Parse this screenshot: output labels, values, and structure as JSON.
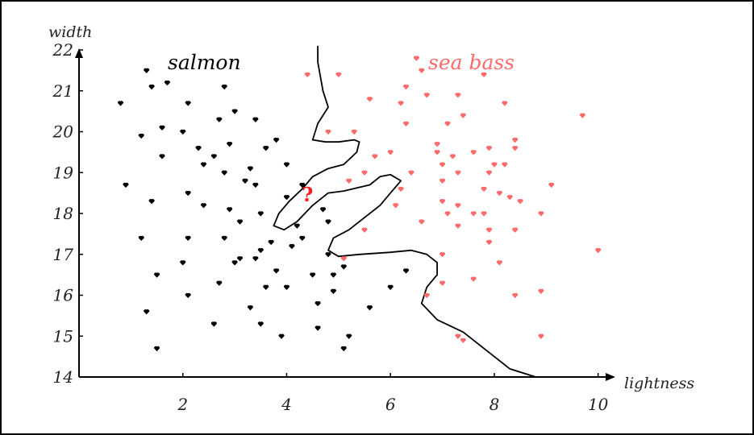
{
  "chart_data": {
    "type": "scatter",
    "xlabel": "lightness",
    "ylabel": "width",
    "xlim": [
      0,
      10.3
    ],
    "ylim": [
      14,
      22
    ],
    "xticks": [
      2,
      4,
      6,
      8,
      10
    ],
    "yticks": [
      14,
      15,
      16,
      17,
      18,
      19,
      20,
      21,
      22
    ],
    "grid": false,
    "colors": {
      "salmon": "#000000",
      "sea_bass": "#ff6b6b",
      "question": "#ff1a1a"
    },
    "class_labels": {
      "salmon": "salmon",
      "sea_bass": "sea bass"
    },
    "query": {
      "label": "?",
      "x": 4.4,
      "y": 18.3
    },
    "series": [
      {
        "name": "salmon",
        "points": [
          [
            1.3,
            21.5
          ],
          [
            1.4,
            21.1
          ],
          [
            1.7,
            21.2
          ],
          [
            2.8,
            21.1
          ],
          [
            0.8,
            20.7
          ],
          [
            2.1,
            20.7
          ],
          [
            3.0,
            20.5
          ],
          [
            2.7,
            20.3
          ],
          [
            3.4,
            20.3
          ],
          [
            1.6,
            20.1
          ],
          [
            2.0,
            20.0
          ],
          [
            1.2,
            19.9
          ],
          [
            3.8,
            19.8
          ],
          [
            2.3,
            19.6
          ],
          [
            2.9,
            19.7
          ],
          [
            3.6,
            19.6
          ],
          [
            1.6,
            19.4
          ],
          [
            2.6,
            19.4
          ],
          [
            4.0,
            19.2
          ],
          [
            2.4,
            19.2
          ],
          [
            3.3,
            19.1
          ],
          [
            2.8,
            19.0
          ],
          [
            3.4,
            18.7
          ],
          [
            3.2,
            18.8
          ],
          [
            4.3,
            18.7
          ],
          [
            0.9,
            18.7
          ],
          [
            2.1,
            18.5
          ],
          [
            4.0,
            18.4
          ],
          [
            1.4,
            18.3
          ],
          [
            2.4,
            18.2
          ],
          [
            2.9,
            18.1
          ],
          [
            3.5,
            18.0
          ],
          [
            4.7,
            18.1
          ],
          [
            3.1,
            17.8
          ],
          [
            4.2,
            17.7
          ],
          [
            4.8,
            17.8
          ],
          [
            2.1,
            17.4
          ],
          [
            2.8,
            17.4
          ],
          [
            3.7,
            17.3
          ],
          [
            4.3,
            17.4
          ],
          [
            1.2,
            17.4
          ],
          [
            4.1,
            17.2
          ],
          [
            3.5,
            17.1
          ],
          [
            3.1,
            16.9
          ],
          [
            3.4,
            16.9
          ],
          [
            4.8,
            17.0
          ],
          [
            2.0,
            16.8
          ],
          [
            3.0,
            16.8
          ],
          [
            5.1,
            16.7
          ],
          [
            3.8,
            16.6
          ],
          [
            4.5,
            16.5
          ],
          [
            4.9,
            16.5
          ],
          [
            1.5,
            16.5
          ],
          [
            2.7,
            16.3
          ],
          [
            3.6,
            16.2
          ],
          [
            4.0,
            16.2
          ],
          [
            6.0,
            16.2
          ],
          [
            4.9,
            16.1
          ],
          [
            6.3,
            16.6
          ],
          [
            2.1,
            16.0
          ],
          [
            4.6,
            15.8
          ],
          [
            3.3,
            15.7
          ],
          [
            5.6,
            15.7
          ],
          [
            1.3,
            15.6
          ],
          [
            3.5,
            15.3
          ],
          [
            2.6,
            15.3
          ],
          [
            3.9,
            15.0
          ],
          [
            4.6,
            15.2
          ],
          [
            5.2,
            15.0
          ],
          [
            1.5,
            14.7
          ],
          [
            5.1,
            14.7
          ]
        ]
      },
      {
        "name": "sea bass",
        "points": [
          [
            6.5,
            21.8
          ],
          [
            6.6,
            21.5
          ],
          [
            4.4,
            21.4
          ],
          [
            5.0,
            21.4
          ],
          [
            7.8,
            21.4
          ],
          [
            6.3,
            21.1
          ],
          [
            5.6,
            20.8
          ],
          [
            7.3,
            20.9
          ],
          [
            6.7,
            20.9
          ],
          [
            6.2,
            20.7
          ],
          [
            8.2,
            20.7
          ],
          [
            7.4,
            20.4
          ],
          [
            9.7,
            20.4
          ],
          [
            6.3,
            20.2
          ],
          [
            7.1,
            20.2
          ],
          [
            4.8,
            20.0
          ],
          [
            5.3,
            20.0
          ],
          [
            8.4,
            19.8
          ],
          [
            6.9,
            19.7
          ],
          [
            7.6,
            19.5
          ],
          [
            7.9,
            19.6
          ],
          [
            8.4,
            19.6
          ],
          [
            7.2,
            19.4
          ],
          [
            6.9,
            19.5
          ],
          [
            5.7,
            19.4
          ],
          [
            6.0,
            19.5
          ],
          [
            8.2,
            19.2
          ],
          [
            8.0,
            19.2
          ],
          [
            6.4,
            19.0
          ],
          [
            7.0,
            19.2
          ],
          [
            7.3,
            19.0
          ],
          [
            7.9,
            19.0
          ],
          [
            5.5,
            19.0
          ],
          [
            5.2,
            18.8
          ],
          [
            7.0,
            18.8
          ],
          [
            9.1,
            18.7
          ],
          [
            6.2,
            18.6
          ],
          [
            7.8,
            18.6
          ],
          [
            8.3,
            18.4
          ],
          [
            8.1,
            18.5
          ],
          [
            7.0,
            18.3
          ],
          [
            7.3,
            18.2
          ],
          [
            8.5,
            18.3
          ],
          [
            6.1,
            18.2
          ],
          [
            7.6,
            18.0
          ],
          [
            8.9,
            18.0
          ],
          [
            7.1,
            18.0
          ],
          [
            7.8,
            18.0
          ],
          [
            6.6,
            17.8
          ],
          [
            7.3,
            17.7
          ],
          [
            7.9,
            17.6
          ],
          [
            8.4,
            17.6
          ],
          [
            5.5,
            17.6
          ],
          [
            7.9,
            17.3
          ],
          [
            10.0,
            17.1
          ],
          [
            7.0,
            17.0
          ],
          [
            8.1,
            16.8
          ],
          [
            5.1,
            16.9
          ],
          [
            7.6,
            16.4
          ],
          [
            7.0,
            16.3
          ],
          [
            8.9,
            16.1
          ],
          [
            8.4,
            16.0
          ],
          [
            6.7,
            16.0
          ],
          [
            7.3,
            15.0
          ],
          [
            8.9,
            15.0
          ],
          [
            7.4,
            14.9
          ]
        ]
      }
    ],
    "boundary": [
      [
        4.6,
        22.1
      ],
      [
        4.6,
        21.7
      ],
      [
        4.7,
        21.0
      ],
      [
        4.8,
        20.6
      ],
      [
        4.6,
        20.2
      ],
      [
        4.5,
        19.8
      ],
      [
        4.75,
        19.75
      ],
      [
        5.0,
        19.75
      ],
      [
        5.3,
        19.8
      ],
      [
        5.4,
        19.75
      ],
      [
        5.35,
        19.5
      ],
      [
        5.1,
        19.2
      ],
      [
        4.8,
        19.1
      ],
      [
        4.5,
        18.9
      ],
      [
        4.3,
        18.6
      ],
      [
        4.05,
        18.3
      ],
      [
        3.85,
        18.0
      ],
      [
        3.75,
        17.7
      ],
      [
        3.95,
        17.6
      ],
      [
        4.2,
        17.8
      ],
      [
        4.5,
        18.2
      ],
      [
        4.8,
        18.5
      ],
      [
        5.1,
        18.55
      ],
      [
        5.6,
        18.7
      ],
      [
        5.8,
        18.9
      ],
      [
        6.0,
        18.95
      ],
      [
        6.2,
        18.8
      ],
      [
        6.0,
        18.5
      ],
      [
        5.8,
        18.2
      ],
      [
        5.5,
        17.9
      ],
      [
        5.2,
        17.6
      ],
      [
        4.9,
        17.4
      ],
      [
        4.8,
        17.1
      ],
      [
        5.0,
        16.95
      ],
      [
        5.4,
        17.0
      ],
      [
        6.0,
        17.05
      ],
      [
        6.4,
        17.1
      ],
      [
        6.7,
        17.0
      ],
      [
        6.9,
        16.8
      ],
      [
        6.9,
        16.5
      ],
      [
        6.7,
        16.2
      ],
      [
        6.6,
        15.8
      ],
      [
        6.9,
        15.4
      ],
      [
        7.4,
        15.1
      ],
      [
        7.9,
        14.6
      ],
      [
        8.3,
        14.2
      ],
      [
        8.8,
        14.0
      ]
    ]
  }
}
